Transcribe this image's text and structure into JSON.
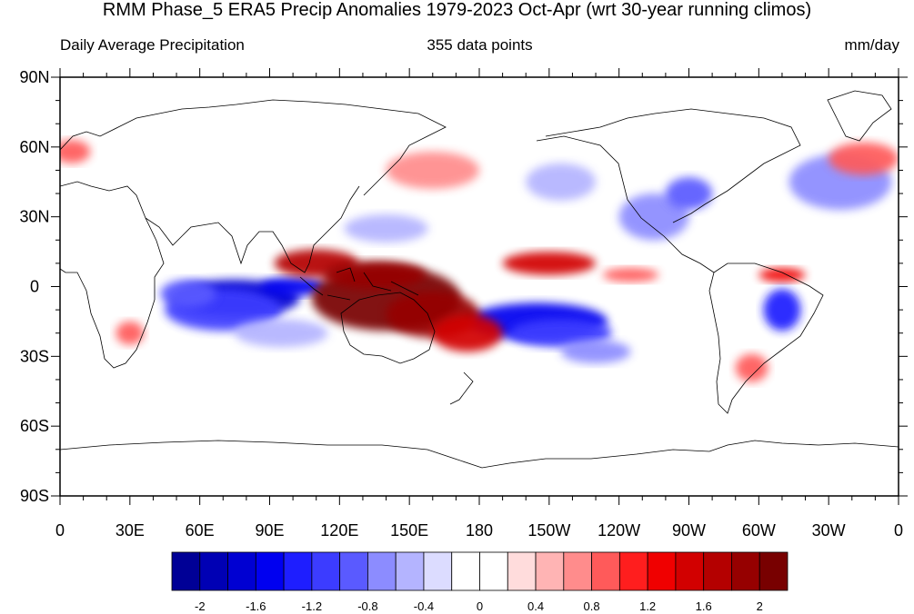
{
  "title": "RMM Phase_5 ERA5 Precip Anomalies 1979-2023 Oct-Apr (wrt 30-year running climos)",
  "subtitle_left": "Daily Average Precipitation",
  "subtitle_center": "355 data points",
  "subtitle_right": "mm/day",
  "lat_labels": [
    "90N",
    "60N",
    "30N",
    "0",
    "30S",
    "60S",
    "90S"
  ],
  "lon_labels": [
    "0",
    "30E",
    "60E",
    "90E",
    "120E",
    "150E",
    "180",
    "150W",
    "120W",
    "90W",
    "60W",
    "30W",
    "0"
  ],
  "colorbar": {
    "colors": [
      "#000096",
      "#0000b4",
      "#0000d2",
      "#0000f0",
      "#1e1eff",
      "#3c3cff",
      "#5a5aff",
      "#8c8cff",
      "#b4b4ff",
      "#dcdcff",
      "#ffffff",
      "#ffffff",
      "#ffdcdc",
      "#ffb4b4",
      "#ff8c8c",
      "#ff5a5a",
      "#ff1e1e",
      "#f00000",
      "#d20000",
      "#b40000",
      "#960000",
      "#780000"
    ],
    "labels": [
      "-2",
      "-1.6",
      "-1.2",
      "-0.8",
      "-0.4",
      "0",
      "0.4",
      "0.8",
      "1.2",
      "1.6",
      "2"
    ]
  },
  "map_data": {
    "anomalies": [
      {
        "lon": 75,
        "lat": -5,
        "rx": 28,
        "ry": 8,
        "value": -1.8
      },
      {
        "lon": 70,
        "lat": -10,
        "rx": 25,
        "ry": 9,
        "value": -1.2
      },
      {
        "lon": 55,
        "lat": -3,
        "rx": 12,
        "ry": 6,
        "value": -1.0
      },
      {
        "lon": 100,
        "lat": 0,
        "rx": 14,
        "ry": 4,
        "value": -1.6
      },
      {
        "lon": 95,
        "lat": -20,
        "rx": 20,
        "ry": 6,
        "value": -0.6
      },
      {
        "lon": 205,
        "lat": -15,
        "rx": 30,
        "ry": 8,
        "value": -1.6
      },
      {
        "lon": 215,
        "lat": -20,
        "rx": 22,
        "ry": 6,
        "value": -1.2
      },
      {
        "lon": 230,
        "lat": -28,
        "rx": 15,
        "ry": 5,
        "value": -0.8
      },
      {
        "lon": 140,
        "lat": -5,
        "rx": 32,
        "ry": 14,
        "value": 2.2
      },
      {
        "lon": 160,
        "lat": -12,
        "rx": 20,
        "ry": 10,
        "value": 1.8
      },
      {
        "lon": 110,
        "lat": 10,
        "rx": 18,
        "ry": 6,
        "value": 1.6
      },
      {
        "lon": 135,
        "lat": 5,
        "rx": 22,
        "ry": 6,
        "value": 1.8
      },
      {
        "lon": 175,
        "lat": -20,
        "rx": 15,
        "ry": 8,
        "value": 1.4
      },
      {
        "lon": 210,
        "lat": 10,
        "rx": 20,
        "ry": 5,
        "value": 1.4
      },
      {
        "lon": 245,
        "lat": 5,
        "rx": 12,
        "ry": 3,
        "value": 0.9
      },
      {
        "lon": 310,
        "lat": 5,
        "rx": 10,
        "ry": 3,
        "value": 1.3
      },
      {
        "lon": 310,
        "lat": -10,
        "rx": 8,
        "ry": 9,
        "value": -1.4
      },
      {
        "lon": 297,
        "lat": -35,
        "rx": 7,
        "ry": 6,
        "value": 0.9
      },
      {
        "lon": 255,
        "lat": 30,
        "rx": 15,
        "ry": 10,
        "value": -0.7
      },
      {
        "lon": 270,
        "lat": 40,
        "rx": 10,
        "ry": 7,
        "value": -0.9
      },
      {
        "lon": 335,
        "lat": 45,
        "rx": 22,
        "ry": 12,
        "value": -0.8
      },
      {
        "lon": 160,
        "lat": 50,
        "rx": 20,
        "ry": 8,
        "value": 0.7
      },
      {
        "lon": 140,
        "lat": 25,
        "rx": 18,
        "ry": 6,
        "value": -0.6
      },
      {
        "lon": 215,
        "lat": 45,
        "rx": 15,
        "ry": 8,
        "value": -0.5
      },
      {
        "lon": 345,
        "lat": 55,
        "rx": 15,
        "ry": 7,
        "value": 0.8
      },
      {
        "lon": 30,
        "lat": -20,
        "rx": 6,
        "ry": 5,
        "value": 0.9
      },
      {
        "lon": 5,
        "lat": 58,
        "rx": 8,
        "ry": 5,
        "value": 0.9
      }
    ]
  }
}
